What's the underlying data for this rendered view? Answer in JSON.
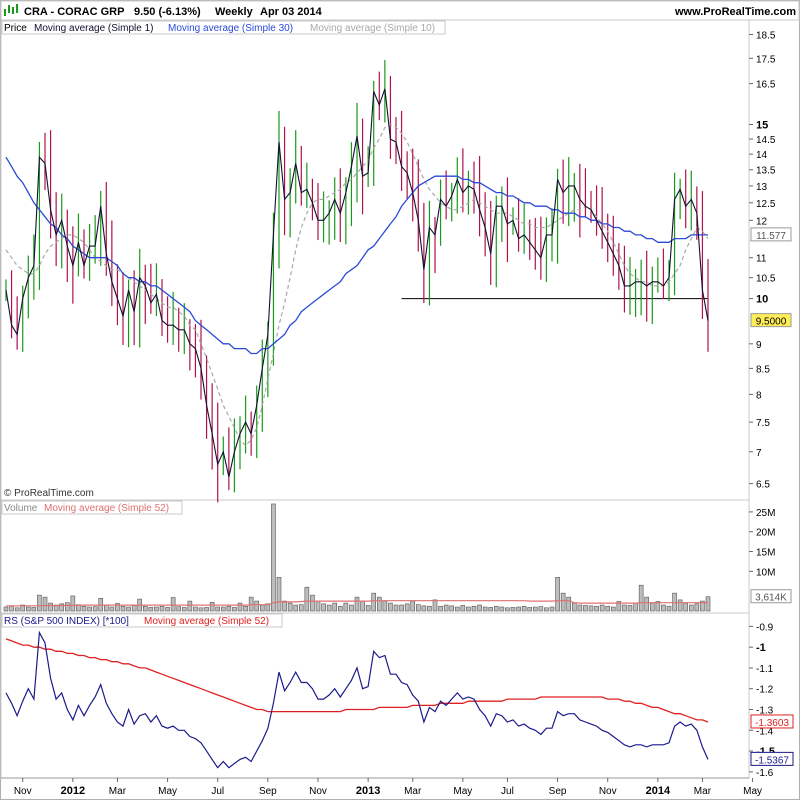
{
  "header": {
    "title": "CRA - CORAC GRP",
    "price_info": "9.50 (-6.13%)",
    "period": "Weekly",
    "date": "Apr 03 2014",
    "site": "www.ProRealTime.com"
  },
  "watermark": "© ProRealTime.com",
  "colors": {
    "up": "#1a9a1a",
    "down": "#b0124a",
    "ma1": "#101030",
    "ma30": "#2a4ad8",
    "ma10": "#a8a8a8",
    "rs": "#1a1a8a",
    "rs_ma": "#e02020",
    "volume_bar": "#a0a0a0",
    "volume_ma": "#e07070"
  },
  "chart_data": [
    {
      "type": "line",
      "panel": "price",
      "legend": [
        "Price",
        "Moving average (Simple 1)",
        "Moving average (Simple 30)",
        "Moving average (Simple 10)"
      ],
      "x_ticks": [
        "Nov",
        "2012",
        "Mar",
        "May",
        "Jul",
        "Sep",
        "Nov",
        "2013",
        "Mar",
        "May",
        "Jul",
        "Sep",
        "Nov",
        "2014",
        "Mar",
        "May"
      ],
      "y_ticks": [
        "18.5",
        "17.5",
        "16.5",
        "15",
        "14.5",
        "14",
        "13.5",
        "13",
        "12.5",
        "12",
        "11.5",
        "11",
        "10.5",
        "10",
        "9.5",
        "9",
        "8.5",
        "8",
        "7.5",
        "7",
        "6.5"
      ],
      "y_labels_display": [
        "18.5",
        "17.5",
        "16.5",
        "15",
        "14.5",
        "14",
        "13.5",
        "13",
        "12.5",
        "12",
        "11",
        "10.5",
        "10",
        "9",
        "8.5",
        "8",
        "7.5",
        "7",
        "6.5"
      ],
      "scale": "log",
      "ylim": [
        6.3,
        19
      ],
      "last_price_label": "9.5000",
      "ma30_label": "11.577",
      "support_level": 10.0,
      "series": [
        {
          "name": "Moving average (Simple 1)",
          "values": [
            10.2,
            9.4,
            9.2,
            10.0,
            10.5,
            10.8,
            13.9,
            13.7,
            12.3,
            11.6,
            12.0,
            11.3,
            10.8,
            11.4,
            10.8,
            11.3,
            11.3,
            12.4,
            11.1,
            10.4,
            10.0,
            9.6,
            10.2,
            9.7,
            10.5,
            10.3,
            9.9,
            10.1,
            9.5,
            9.4,
            9.4,
            9.3,
            9.3,
            9.0,
            8.9,
            8.5,
            7.8,
            7.3,
            6.8,
            7.0,
            6.6,
            7.0,
            7.3,
            7.5,
            7.3,
            7.8,
            8.5,
            9.2,
            11.6,
            14.4,
            12.6,
            12.8,
            13.7,
            12.8,
            12.9,
            12.5,
            12.0,
            12.0,
            12.2,
            12.6,
            12.2,
            12.8,
            13.6,
            14.6,
            13.3,
            13.4,
            16.2,
            15.7,
            16.3,
            14.5,
            14.4,
            13.6,
            13.4,
            12.8,
            12.0,
            10.7,
            11.8,
            11.6,
            12.6,
            12.4,
            12.7,
            13.2,
            12.8,
            13.0,
            12.9,
            12.3,
            11.8,
            11.1,
            12.4,
            12.4,
            11.9,
            12.0,
            11.5,
            11.6,
            11.4,
            11.2,
            11.0,
            11.6,
            11.6,
            13.2,
            12.8,
            13.0,
            13.0,
            12.6,
            12.4,
            12.3,
            12.0,
            11.7,
            11.4,
            11.1,
            10.8,
            10.3,
            10.3,
            10.4,
            10.4,
            10.3,
            10.4,
            10.4,
            10.3,
            10.5,
            12.6,
            12.9,
            12.4,
            12.6,
            12.2,
            10.2,
            9.5
          ]
        },
        {
          "name": "Moving average (Simple 30)",
          "values": [
            13.9,
            13.6,
            13.3,
            13.1,
            12.8,
            12.5,
            12.3,
            12.1,
            11.9,
            11.8,
            11.6,
            11.5,
            11.3,
            11.2,
            11.1,
            11.0,
            11.0,
            11.0,
            11.0,
            10.9,
            10.8,
            10.6,
            10.5,
            10.5,
            10.4,
            10.4,
            10.3,
            10.3,
            10.2,
            10.1,
            10.0,
            9.9,
            9.8,
            9.7,
            9.5,
            9.4,
            9.3,
            9.2,
            9.1,
            9.0,
            9.0,
            8.9,
            8.9,
            8.9,
            8.8,
            8.8,
            8.9,
            8.9,
            9.0,
            9.1,
            9.2,
            9.4,
            9.5,
            9.7,
            9.8,
            9.9,
            10.0,
            10.1,
            10.2,
            10.3,
            10.4,
            10.6,
            10.7,
            10.8,
            11.0,
            11.2,
            11.3,
            11.5,
            11.7,
            11.9,
            12.1,
            12.4,
            12.6,
            12.8,
            13.0,
            13.1,
            13.2,
            13.3,
            13.3,
            13.3,
            13.3,
            13.3,
            13.2,
            13.2,
            13.1,
            13.1,
            13.0,
            12.9,
            12.8,
            12.8,
            12.7,
            12.7,
            12.6,
            12.5,
            12.5,
            12.4,
            12.4,
            12.4,
            12.3,
            12.3,
            12.2,
            12.2,
            12.2,
            12.1,
            12.1,
            12.0,
            12.0,
            11.9,
            11.9,
            11.8,
            11.8,
            11.7,
            11.7,
            11.6,
            11.6,
            11.5,
            11.5,
            11.4,
            11.4,
            11.4,
            11.5,
            11.5,
            11.5,
            11.6,
            11.6,
            11.6,
            11.6
          ]
        },
        {
          "name": "Moving average (Simple 10)",
          "values": [
            11.2,
            11.0,
            10.8,
            10.7,
            10.6,
            10.6,
            10.8,
            11.1,
            11.3,
            11.4,
            11.5,
            11.6,
            11.6,
            11.5,
            11.4,
            11.2,
            11.0,
            10.9,
            10.8,
            10.7,
            10.7,
            10.6,
            10.5,
            10.4,
            10.3,
            10.2,
            10.1,
            10.0,
            9.9,
            9.8,
            9.8,
            9.7,
            9.6,
            9.4,
            9.3,
            9.0,
            8.7,
            8.4,
            8.1,
            7.8,
            7.6,
            7.4,
            7.2,
            7.1,
            7.2,
            7.4,
            7.8,
            8.3,
            8.8,
            9.4,
            9.9,
            10.5,
            11.2,
            11.8,
            12.2,
            12.5,
            12.6,
            12.6,
            12.7,
            12.8,
            12.9,
            13.1,
            13.2,
            13.4,
            13.6,
            13.8,
            14.2,
            14.5,
            14.9,
            15.0,
            14.9,
            14.7,
            14.4,
            14.0,
            13.6,
            13.2,
            12.9,
            12.7,
            12.5,
            12.4,
            12.3,
            12.3,
            12.4,
            12.5,
            12.6,
            12.5,
            12.4,
            12.3,
            12.2,
            12.2,
            12.2,
            12.1,
            12.0,
            11.9,
            11.9,
            11.8,
            11.8,
            11.8,
            11.9,
            12.0,
            12.1,
            12.2,
            12.3,
            12.3,
            12.4,
            12.3,
            12.1,
            11.9,
            11.7,
            11.4,
            11.1,
            10.8,
            10.6,
            10.5,
            10.4,
            10.4,
            10.3,
            10.3,
            10.3,
            10.4,
            10.6,
            10.8,
            11.2,
            11.5,
            11.8,
            11.7,
            11.5
          ]
        }
      ]
    },
    {
      "type": "bar",
      "panel": "volume",
      "legend": [
        "Volume",
        "Moving average (Simple 52)"
      ],
      "y_ticks": [
        "25M",
        "20M",
        "15M",
        "10M"
      ],
      "ylim": [
        0,
        28
      ],
      "last_volume_label": "3,614K",
      "values": [
        1.0,
        1.2,
        0.8,
        1.5,
        1.0,
        0.9,
        4.0,
        3.5,
        2.0,
        1.5,
        1.8,
        2.1,
        3.8,
        1.6,
        1.2,
        1.0,
        1.1,
        3.2,
        1.5,
        1.0,
        1.9,
        1.2,
        1.0,
        1.4,
        3.0,
        1.2,
        0.9,
        1.0,
        1.2,
        0.9,
        3.4,
        1.1,
        0.9,
        2.5,
        1.0,
        0.8,
        0.9,
        2.2,
        1.0,
        1.0,
        1.2,
        0.9,
        2.0,
        1.2,
        3.5,
        2.5,
        1.5,
        1.8,
        27.0,
        8.5,
        2.5,
        2.0,
        1.5,
        1.6,
        6.0,
        4.0,
        2.5,
        1.8,
        1.5,
        2.0,
        1.2,
        2.0,
        1.5,
        3.5,
        2.5,
        1.4,
        4.5,
        3.5,
        2.5,
        2.0,
        1.5,
        1.5,
        1.8,
        2.5,
        1.6,
        1.3,
        1.2,
        2.8,
        1.2,
        1.5,
        1.3,
        1.0,
        1.4,
        1.0,
        1.2,
        1.5,
        1.0,
        0.9,
        1.2,
        1.0,
        0.8,
        0.9,
        1.0,
        1.2,
        0.9,
        1.0,
        1.1,
        0.8,
        1.0,
        8.5,
        4.5,
        3.5,
        2.0,
        1.5,
        1.4,
        1.3,
        1.2,
        1.5,
        1.2,
        1.0,
        2.4,
        1.5,
        1.4,
        2.0,
        6.5,
        3.5,
        2.0,
        2.4,
        1.5,
        1.2,
        4.5,
        2.8,
        2.0,
        1.5,
        1.8,
        2.5,
        3.6
      ],
      "ma52": [
        1.3,
        1.3,
        1.3,
        1.3,
        1.3,
        1.3,
        1.3,
        1.4,
        1.4,
        1.4,
        1.4,
        1.4,
        1.4,
        1.5,
        1.5,
        1.5,
        1.5,
        1.5,
        1.5,
        1.5,
        1.5,
        1.5,
        1.5,
        1.5,
        1.5,
        1.5,
        1.5,
        1.5,
        1.5,
        1.5,
        1.5,
        1.5,
        1.5,
        1.5,
        1.5,
        1.5,
        1.5,
        1.5,
        1.5,
        1.5,
        1.5,
        1.5,
        1.5,
        1.5,
        1.6,
        1.6,
        1.6,
        1.6,
        2.1,
        2.3,
        2.3,
        2.3,
        2.3,
        2.4,
        2.5,
        2.5,
        2.5,
        2.5,
        2.5,
        2.5,
        2.5,
        2.5,
        2.5,
        2.5,
        2.5,
        2.5,
        2.6,
        2.6,
        2.6,
        2.6,
        2.6,
        2.6,
        2.6,
        2.6,
        2.6,
        2.6,
        2.6,
        2.6,
        2.6,
        2.6,
        2.6,
        2.6,
        2.6,
        2.6,
        2.6,
        2.6,
        2.6,
        2.6,
        2.6,
        2.6,
        2.6,
        2.6,
        2.6,
        2.6,
        2.5,
        2.5,
        2.5,
        2.5,
        2.5,
        2.6,
        2.6,
        2.6,
        2.1,
        2.0,
        2.0,
        2.0,
        2.0,
        2.0,
        2.0,
        2.0,
        2.0,
        2.0,
        2.0,
        2.0,
        2.1,
        2.1,
        2.1,
        2.1,
        2.1,
        2.1,
        2.1,
        2.1,
        2.1,
        2.1,
        2.1,
        2.1,
        2.1
      ]
    },
    {
      "type": "line",
      "panel": "relative_strength",
      "legend": [
        "RS (S&P 500 INDEX) [*100]",
        "Moving average (Simple 52)"
      ],
      "y_ticks": [
        "-0.9",
        "-1",
        "-1.1",
        "-1.2",
        "-1.3",
        "-1.4",
        "-1.5",
        "-1.6"
      ],
      "ylim": [
        -1.62,
        -0.85
      ],
      "ma_label": "-1.3603",
      "rs_label": "-1.5367",
      "series": [
        {
          "name": "RS (S&P 500 INDEX) [*100]",
          "values": [
            -1.22,
            -1.27,
            -1.33,
            -1.26,
            -1.2,
            -1.25,
            -0.93,
            -0.98,
            -1.15,
            -1.25,
            -1.22,
            -1.3,
            -1.35,
            -1.28,
            -1.33,
            -1.28,
            -1.24,
            -1.18,
            -1.27,
            -1.32,
            -1.36,
            -1.38,
            -1.3,
            -1.37,
            -1.33,
            -1.32,
            -1.36,
            -1.33,
            -1.38,
            -1.39,
            -1.38,
            -1.4,
            -1.4,
            -1.43,
            -1.44,
            -1.46,
            -1.5,
            -1.54,
            -1.58,
            -1.55,
            -1.58,
            -1.56,
            -1.54,
            -1.53,
            -1.55,
            -1.5,
            -1.45,
            -1.39,
            -1.27,
            -1.12,
            -1.21,
            -1.17,
            -1.12,
            -1.17,
            -1.17,
            -1.2,
            -1.25,
            -1.25,
            -1.23,
            -1.2,
            -1.24,
            -1.2,
            -1.16,
            -1.1,
            -1.2,
            -1.19,
            -1.02,
            -1.05,
            -1.04,
            -1.13,
            -1.13,
            -1.17,
            -1.18,
            -1.23,
            -1.26,
            -1.36,
            -1.29,
            -1.31,
            -1.26,
            -1.28,
            -1.25,
            -1.22,
            -1.25,
            -1.24,
            -1.25,
            -1.3,
            -1.33,
            -1.38,
            -1.32,
            -1.33,
            -1.36,
            -1.35,
            -1.38,
            -1.37,
            -1.39,
            -1.4,
            -1.42,
            -1.39,
            -1.39,
            -1.31,
            -1.33,
            -1.32,
            -1.32,
            -1.35,
            -1.36,
            -1.37,
            -1.38,
            -1.4,
            -1.41,
            -1.43,
            -1.45,
            -1.47,
            -1.48,
            -1.47,
            -1.47,
            -1.48,
            -1.47,
            -1.47,
            -1.47,
            -1.46,
            -1.38,
            -1.36,
            -1.38,
            -1.37,
            -1.4,
            -1.48,
            -1.54
          ]
        },
        {
          "name": "Moving average (Simple 52)",
          "values": [
            -0.96,
            -0.97,
            -0.98,
            -0.99,
            -0.99,
            -1.0,
            -1.0,
            -1.01,
            -1.01,
            -1.02,
            -1.02,
            -1.03,
            -1.03,
            -1.04,
            -1.04,
            -1.05,
            -1.05,
            -1.06,
            -1.06,
            -1.07,
            -1.07,
            -1.08,
            -1.08,
            -1.09,
            -1.1,
            -1.1,
            -1.11,
            -1.12,
            -1.13,
            -1.14,
            -1.15,
            -1.16,
            -1.17,
            -1.18,
            -1.19,
            -1.2,
            -1.21,
            -1.22,
            -1.23,
            -1.24,
            -1.25,
            -1.26,
            -1.27,
            -1.28,
            -1.29,
            -1.3,
            -1.3,
            -1.31,
            -1.31,
            -1.31,
            -1.31,
            -1.31,
            -1.31,
            -1.31,
            -1.31,
            -1.31,
            -1.31,
            -1.31,
            -1.31,
            -1.31,
            -1.31,
            -1.3,
            -1.3,
            -1.3,
            -1.3,
            -1.3,
            -1.3,
            -1.29,
            -1.29,
            -1.29,
            -1.29,
            -1.29,
            -1.29,
            -1.28,
            -1.28,
            -1.28,
            -1.28,
            -1.28,
            -1.27,
            -1.27,
            -1.27,
            -1.27,
            -1.27,
            -1.26,
            -1.26,
            -1.26,
            -1.26,
            -1.26,
            -1.26,
            -1.26,
            -1.25,
            -1.25,
            -1.25,
            -1.25,
            -1.25,
            -1.25,
            -1.24,
            -1.24,
            -1.24,
            -1.24,
            -1.24,
            -1.24,
            -1.24,
            -1.24,
            -1.24,
            -1.24,
            -1.24,
            -1.24,
            -1.25,
            -1.25,
            -1.25,
            -1.26,
            -1.26,
            -1.27,
            -1.27,
            -1.28,
            -1.29,
            -1.29,
            -1.3,
            -1.31,
            -1.32,
            -1.32,
            -1.33,
            -1.34,
            -1.35,
            -1.35,
            -1.36
          ]
        }
      ]
    }
  ]
}
